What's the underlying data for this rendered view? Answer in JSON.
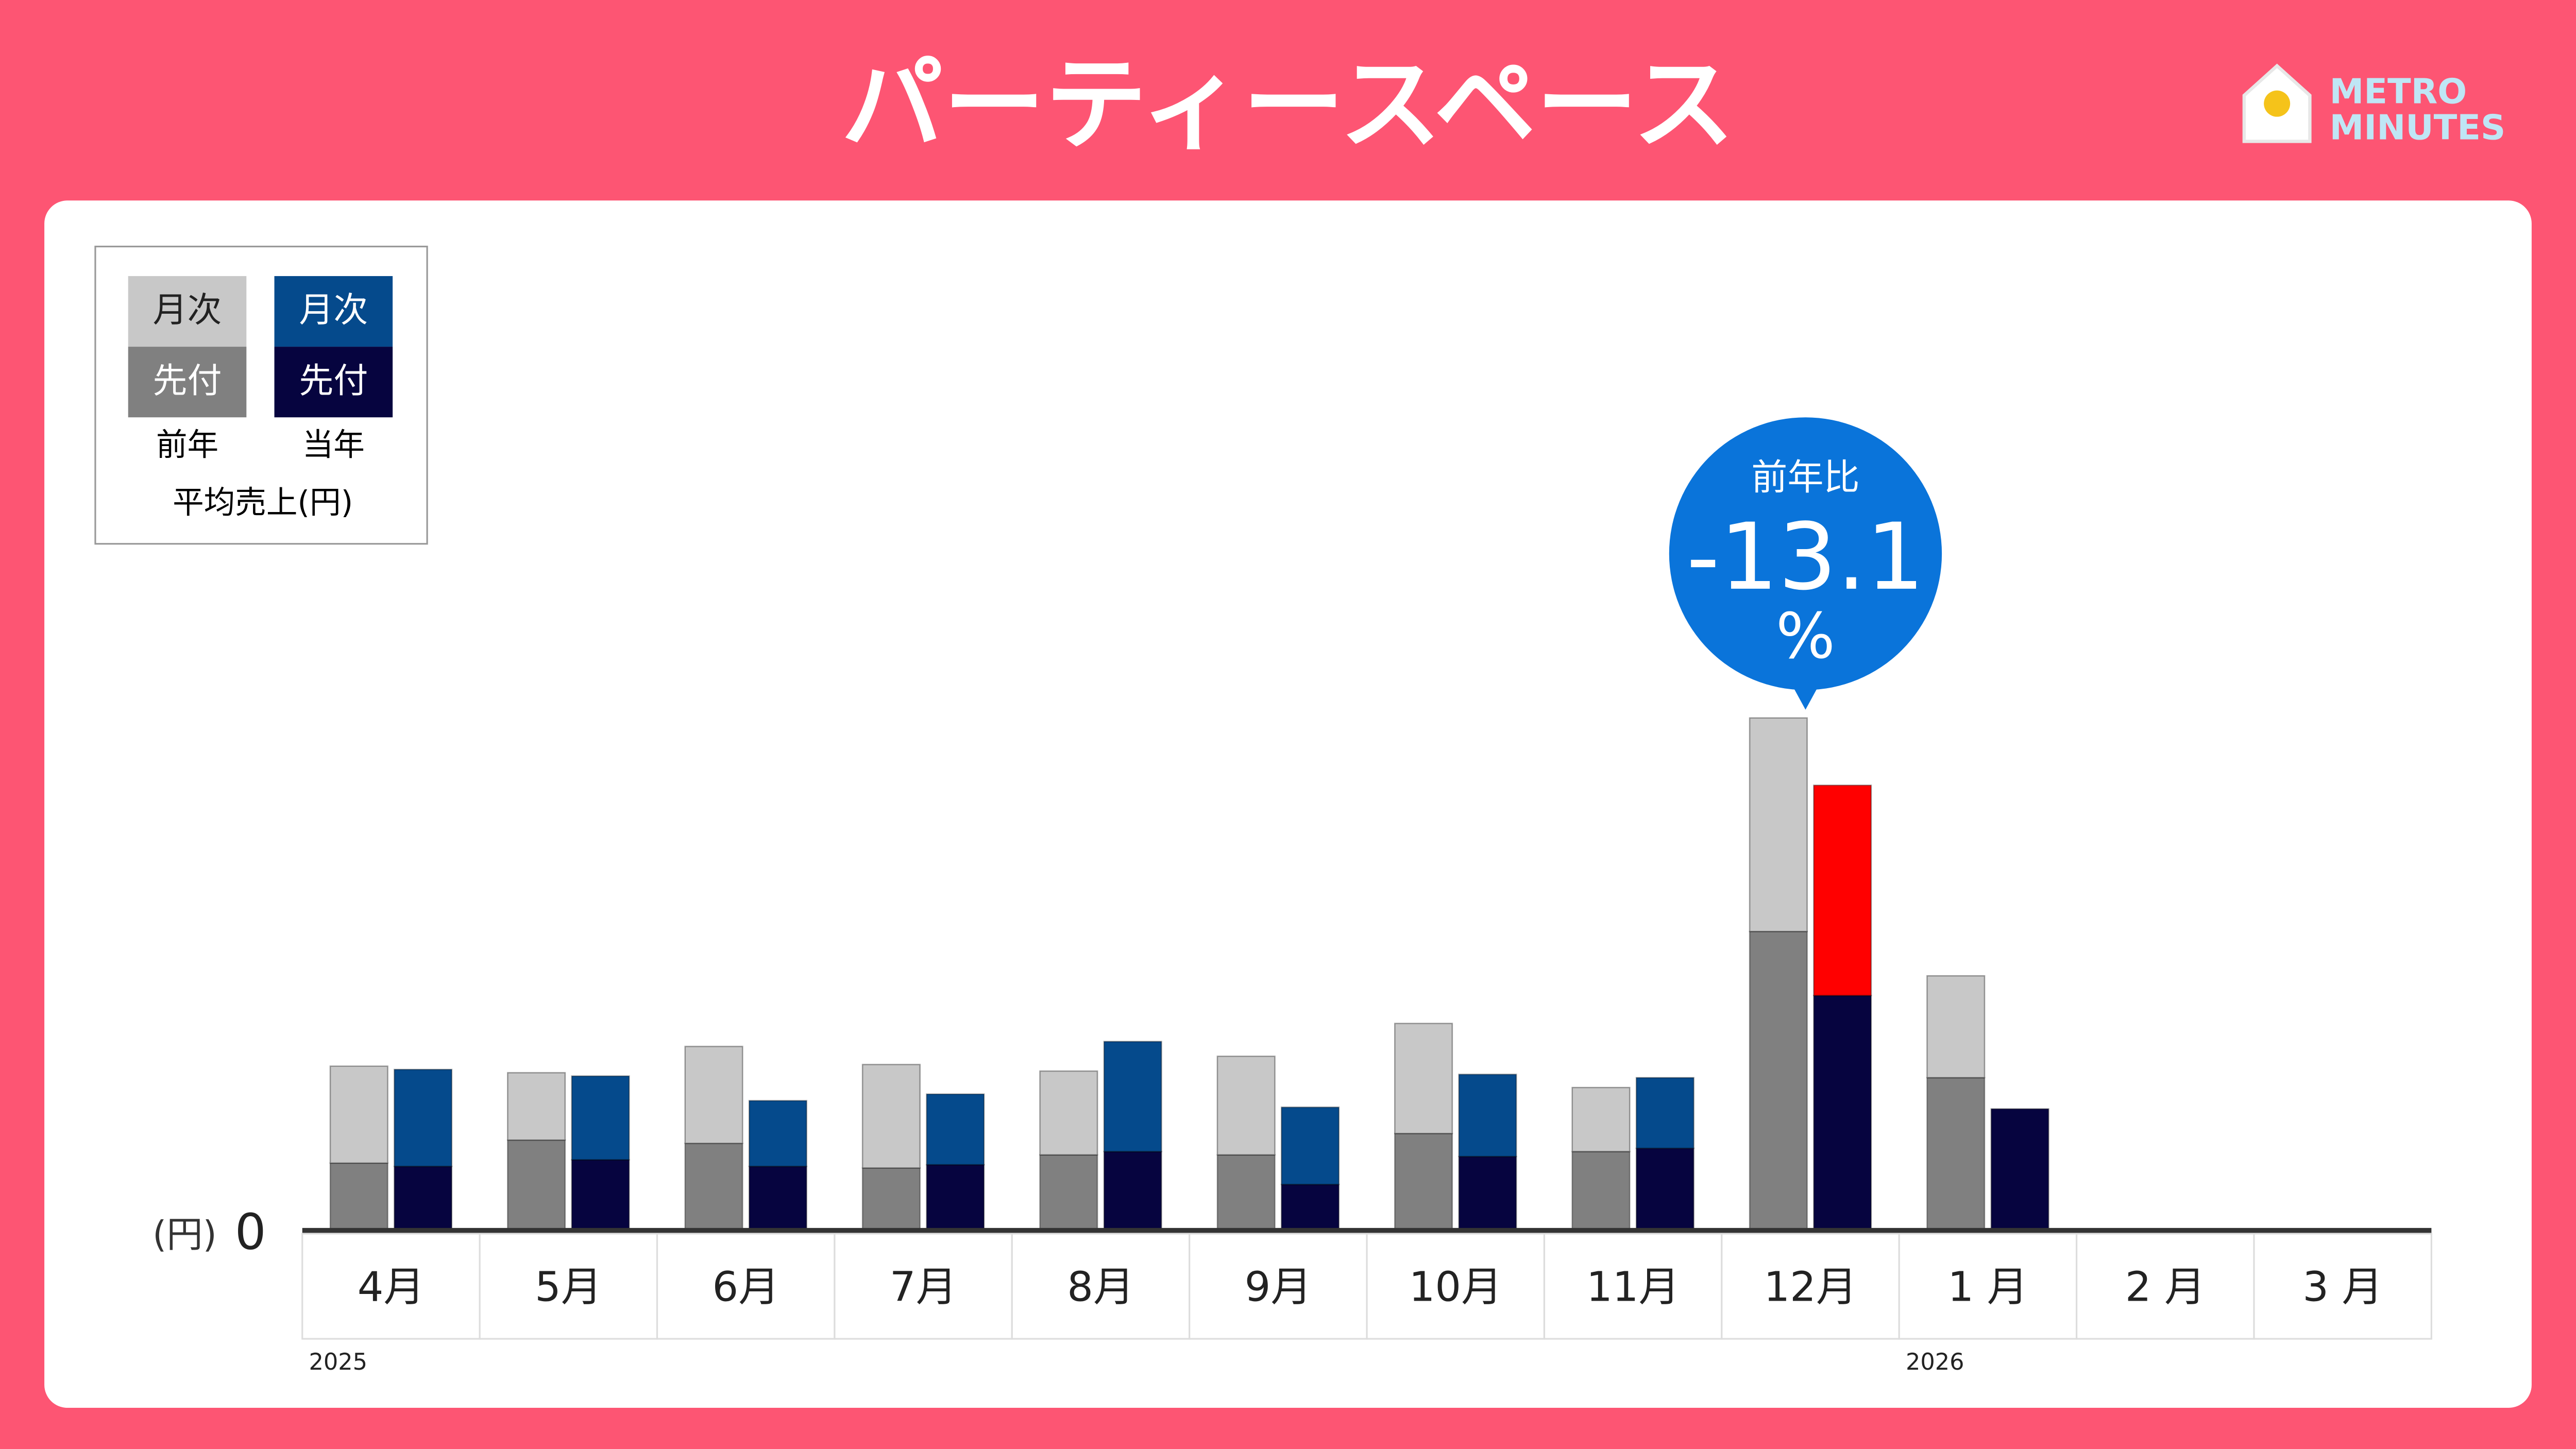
{
  "chart_data": {
    "type": "stacked-bar",
    "title": "パーティースペース",
    "logo": [
      "METRO",
      "MINUTES"
    ],
    "categories": [
      "4月",
      "5月",
      "6月",
      "7月",
      "8月",
      "9月",
      "10月",
      "11月",
      "12月",
      "1 月",
      "2 月",
      "3 月"
    ],
    "year_labels": [
      {
        "index": 0,
        "label": "2025"
      },
      {
        "index": 9,
        "label": "2026"
      }
    ],
    "series": [
      {
        "name": "先付",
        "group": "前年",
        "color": "#808080",
        "values": [
          41,
          55,
          53,
          38,
          46,
          46,
          59,
          48,
          182,
          93,
          null,
          null
        ]
      },
      {
        "name": "月次",
        "group": "前年",
        "color": "#c8c8c8",
        "values": [
          59,
          41,
          59,
          63,
          51,
          60,
          67,
          39,
          130,
          62,
          null,
          null
        ]
      },
      {
        "name": "先付",
        "group": "当年",
        "color": "#06043f",
        "values": [
          39,
          43,
          39,
          40,
          48,
          28,
          45,
          50,
          143,
          74,
          null,
          null
        ]
      },
      {
        "name": "月次",
        "group": "当年",
        "color": "#054a8c",
        "colors": [
          "#054a8c",
          "#054a8c",
          "#054a8c",
          "#054a8c",
          "#054a8c",
          "#054a8c",
          "#054a8c",
          "#054a8c",
          "#ff0000",
          "#054a8c",
          "#054a8c",
          "#054a8c"
        ],
        "values": [
          59,
          51,
          40,
          43,
          67,
          47,
          50,
          43,
          128,
          null,
          null,
          null
        ]
      }
    ],
    "legend_caption": "平均売上(円)",
    "y_unit": "(円)",
    "ylim": [
      0,
      620
    ],
    "yticks": [
      0
    ],
    "annotation": {
      "index": 8,
      "label": "前年比",
      "value": "-13.1",
      "unit": "%",
      "color": "#0a74da"
    }
  }
}
